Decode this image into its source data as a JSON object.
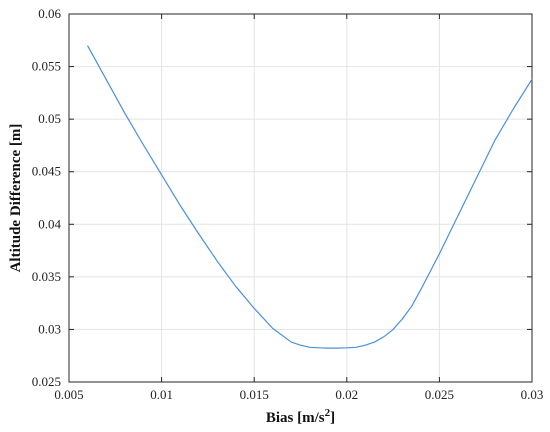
{
  "chart_data": {
    "type": "line",
    "title": "",
    "xlabel": "Bias [m/s",
    "xlabel_superscript": "2",
    "xlabel_suffix": "]",
    "ylabel": "Altitude Difference [m]",
    "xlim": [
      0.005,
      0.03
    ],
    "ylim": [
      0.025,
      0.06
    ],
    "xticks": [
      0.005,
      0.01,
      0.015,
      0.02,
      0.025,
      0.03
    ],
    "xtick_labels": [
      "0.005",
      "0.01",
      "0.015",
      "0.02",
      "0.025",
      "0.03"
    ],
    "yticks": [
      0.025,
      0.03,
      0.035,
      0.04,
      0.045,
      0.05,
      0.055,
      0.06
    ],
    "ytick_labels": [
      "0.025",
      "0.03",
      "0.035",
      "0.04",
      "0.045",
      "0.05",
      "0.055",
      "0.06"
    ],
    "grid": true,
    "line_color": "#4a90d9",
    "series": [
      {
        "x": [
          0.006,
          0.007,
          0.008,
          0.009,
          0.01,
          0.011,
          0.012,
          0.013,
          0.014,
          0.015,
          0.016,
          0.017,
          0.0175,
          0.018,
          0.0185,
          0.019,
          0.0195,
          0.02,
          0.0205,
          0.021,
          0.0215,
          0.022,
          0.0225,
          0.023,
          0.0235,
          0.024,
          0.025,
          0.026,
          0.027,
          0.028,
          0.029,
          0.03
        ],
        "y": [
          0.057,
          0.0538,
          0.0506,
          0.0476,
          0.0447,
          0.0418,
          0.0391,
          0.0365,
          0.0341,
          0.032,
          0.0301,
          0.0288,
          0.0285,
          0.0283,
          0.02825,
          0.02822,
          0.02822,
          0.02825,
          0.0283,
          0.0285,
          0.0288,
          0.0293,
          0.03,
          0.031,
          0.0322,
          0.0338,
          0.0372,
          0.0408,
          0.0444,
          0.048,
          0.051,
          0.0538
        ]
      }
    ]
  }
}
